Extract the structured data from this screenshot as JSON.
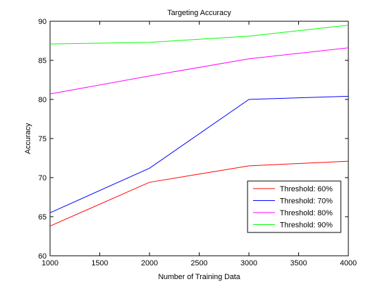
{
  "chart_data": {
    "type": "line",
    "title": "Targeting Accuracy",
    "xlabel": "Number of Training Data",
    "ylabel": "Accuracy",
    "xlim": [
      1000,
      4000
    ],
    "ylim": [
      60,
      90
    ],
    "xticks": [
      1000,
      1500,
      2000,
      2500,
      3000,
      3500,
      4000
    ],
    "yticks": [
      60,
      65,
      70,
      75,
      80,
      85,
      90
    ],
    "grid": false,
    "legend_position": "lower-right",
    "x": [
      1000,
      2000,
      3000,
      4000
    ],
    "series": [
      {
        "name": "Threshold: 60%",
        "color": "#ff0000",
        "values": [
          63.8,
          69.4,
          71.5,
          72.1
        ]
      },
      {
        "name": "Threshold: 70%",
        "color": "#0000ff",
        "values": [
          65.5,
          71.2,
          80.0,
          80.4
        ]
      },
      {
        "name": "Threshold: 80%",
        "color": "#ff00ff",
        "values": [
          80.7,
          83.0,
          85.2,
          86.6
        ]
      },
      {
        "name": "Threshold: 90%",
        "color": "#00ff00",
        "values": [
          87.1,
          87.3,
          88.1,
          89.5
        ]
      }
    ]
  }
}
